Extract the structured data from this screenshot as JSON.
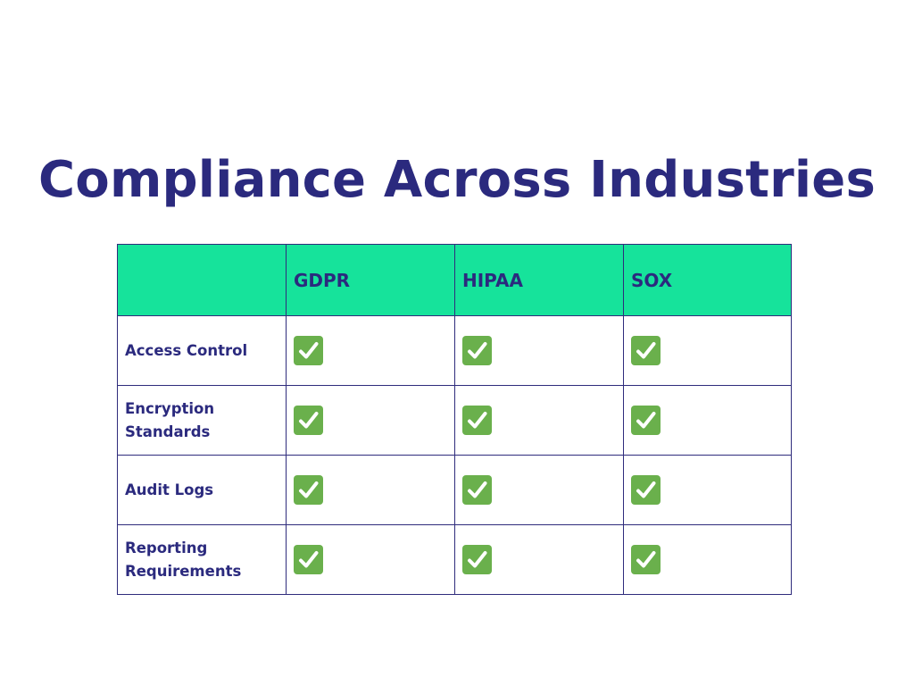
{
  "title": "Compliance Across Industries",
  "table": {
    "corner": "",
    "columns": [
      "GDPR",
      "HIPAA",
      "SOX"
    ],
    "rows": [
      {
        "label": "Access Control",
        "cells": [
          "check-icon",
          "check-icon",
          "check-icon"
        ]
      },
      {
        "label": "Encryption Standards",
        "cells": [
          "check-icon",
          "check-icon",
          "check-icon"
        ]
      },
      {
        "label": "Audit Logs",
        "cells": [
          "check-icon",
          "check-icon",
          "check-icon"
        ]
      },
      {
        "label": "Reporting Requirements",
        "cells": [
          "check-icon",
          "check-icon",
          "check-icon"
        ]
      }
    ]
  },
  "colors": {
    "title": "#2b2a7e",
    "header_bg": "#16e39b",
    "border": "#2f2c7c",
    "check_bg": "#6ab04c",
    "check_mark": "#ffffff"
  }
}
